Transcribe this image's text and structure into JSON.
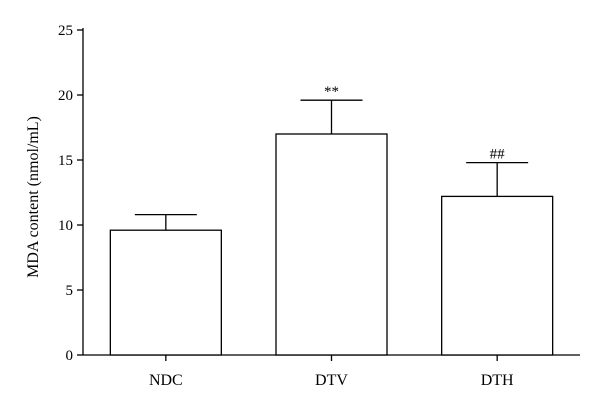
{
  "chart_data": {
    "type": "bar",
    "categories": [
      "NDC",
      "DTV",
      "DTH"
    ],
    "values": [
      9.6,
      17.0,
      12.2
    ],
    "errors": [
      1.2,
      2.6,
      2.6
    ],
    "annotations": [
      "",
      "**",
      "##"
    ],
    "ylabel": "MDA content (nmol/mL)",
    "xlabel": "",
    "ylim": [
      0,
      25
    ],
    "yticks": [
      0,
      5,
      10,
      15,
      20,
      25
    ],
    "grid": false,
    "colors": {
      "bar_fill": "#ffffff",
      "stroke": "#000000"
    }
  }
}
